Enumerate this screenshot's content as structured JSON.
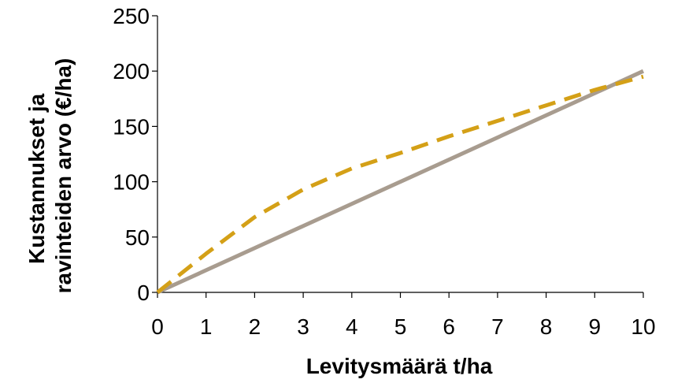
{
  "chart_data": {
    "type": "line",
    "title": "",
    "xlabel": "Levitysmäärä t/ha",
    "ylabel_lines": [
      "Kustannukset ja",
      "ravinteiden arvo (€/ha)"
    ],
    "xlim": [
      0,
      10
    ],
    "ylim": [
      0,
      250
    ],
    "xticks": [
      0,
      1,
      2,
      3,
      4,
      5,
      6,
      7,
      8,
      9,
      10
    ],
    "yticks": [
      0,
      50,
      100,
      150,
      200,
      250
    ],
    "grid": false,
    "legend": "none",
    "series": [
      {
        "color": "#a89c8f",
        "style": "solid",
        "x": [
          0,
          10
        ],
        "y": [
          0,
          200
        ]
      },
      {
        "color": "#d4a017",
        "style": "dashed",
        "x": [
          0,
          1,
          2,
          3,
          4,
          5,
          6,
          7,
          8,
          9,
          10
        ],
        "y": [
          0,
          35,
          68,
          93,
          112,
          126,
          141,
          155,
          169,
          183,
          195
        ]
      }
    ]
  }
}
